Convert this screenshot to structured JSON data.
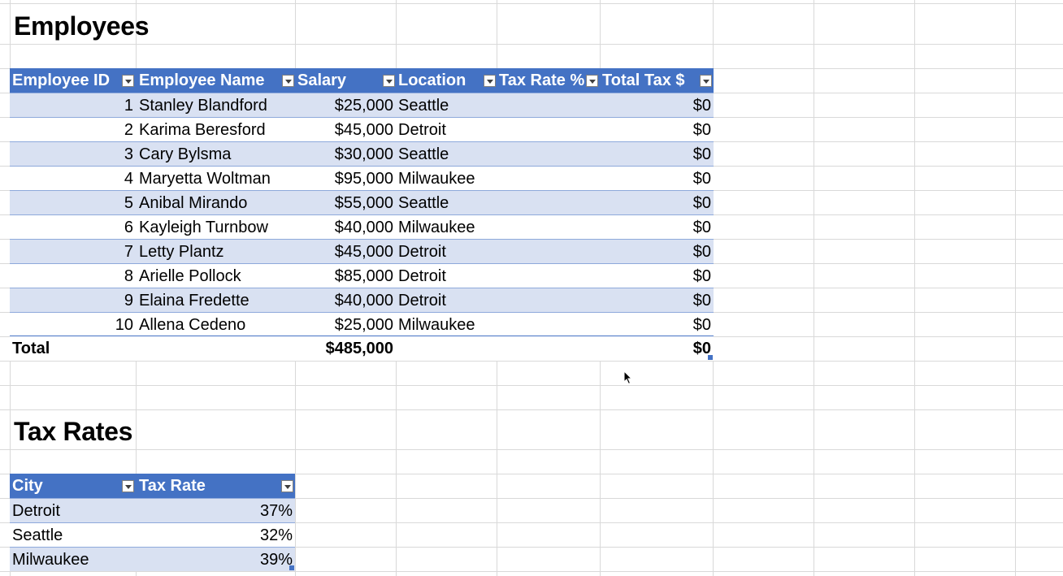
{
  "employees": {
    "title": "Employees",
    "headers": [
      "Employee ID",
      "Employee Name",
      "Salary",
      "Location",
      "Tax Rate %",
      "Total Tax $"
    ],
    "rows": [
      {
        "id": "1",
        "name": "Stanley Blandford",
        "salary": "$25,000",
        "location": "Seattle",
        "tax_rate": "",
        "total_tax": "$0"
      },
      {
        "id": "2",
        "name": "Karima Beresford",
        "salary": "$45,000",
        "location": "Detroit",
        "tax_rate": "",
        "total_tax": "$0"
      },
      {
        "id": "3",
        "name": "Cary Bylsma",
        "salary": "$30,000",
        "location": "Seattle",
        "tax_rate": "",
        "total_tax": "$0"
      },
      {
        "id": "4",
        "name": "Maryetta Woltman",
        "salary": "$95,000",
        "location": "Milwaukee",
        "tax_rate": "",
        "total_tax": "$0"
      },
      {
        "id": "5",
        "name": "Anibal Mirando",
        "salary": "$55,000",
        "location": "Seattle",
        "tax_rate": "",
        "total_tax": "$0"
      },
      {
        "id": "6",
        "name": "Kayleigh Turnbow",
        "salary": "$40,000",
        "location": "Milwaukee",
        "tax_rate": "",
        "total_tax": "$0"
      },
      {
        "id": "7",
        "name": "Letty Plantz",
        "salary": "$45,000",
        "location": "Detroit",
        "tax_rate": "",
        "total_tax": "$0"
      },
      {
        "id": "8",
        "name": "Arielle Pollock",
        "salary": "$85,000",
        "location": "Detroit",
        "tax_rate": "",
        "total_tax": "$0"
      },
      {
        "id": "9",
        "name": "Elaina Fredette",
        "salary": "$40,000",
        "location": "Detroit",
        "tax_rate": "",
        "total_tax": "$0"
      },
      {
        "id": "10",
        "name": "Allena Cedeno",
        "salary": "$25,000",
        "location": "Milwaukee",
        "tax_rate": "",
        "total_tax": "$0"
      }
    ],
    "total": {
      "label": "Total",
      "salary": "$485,000",
      "total_tax": "$0"
    }
  },
  "tax_rates": {
    "title": "Tax Rates",
    "headers": [
      "City",
      "Tax Rate"
    ],
    "rows": [
      {
        "city": "Detroit",
        "rate": "37%"
      },
      {
        "city": "Seattle",
        "rate": "32%"
      },
      {
        "city": "Milwaukee",
        "rate": "39%"
      }
    ]
  },
  "colors": {
    "header_bg": "#4472c4",
    "band_bg": "#d9e1f2",
    "gridline": "#d9d9d9"
  },
  "icons": {
    "filter_dropdown": "chevron-down-icon",
    "cursor": "mouse-pointer-icon"
  }
}
